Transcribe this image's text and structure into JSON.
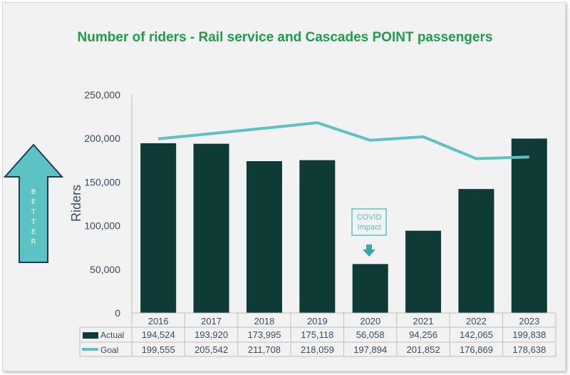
{
  "chart_data": {
    "type": "bar",
    "title": "Number of riders - Rail service and Cascades POINT passengers",
    "ylabel": "Riders",
    "ylim": [
      0,
      250000
    ],
    "yticks": [
      "0",
      "50,000",
      "100,000",
      "150,000",
      "200,000",
      "250,000"
    ],
    "categories": [
      "2016",
      "2017",
      "2018",
      "2019",
      "2020",
      "2021",
      "2022",
      "2023"
    ],
    "series": [
      {
        "name": "Actual",
        "kind": "bar",
        "color": "#0e3b36",
        "values": [
          194524,
          193920,
          173995,
          175118,
          56058,
          94256,
          142065,
          199838
        ],
        "labels": [
          "194,524",
          "193,920",
          "173,995",
          "175,118",
          "56,058",
          "94,256",
          "142,065",
          "199,838"
        ]
      },
      {
        "name": "Goal",
        "kind": "line",
        "color": "#5bc4c2",
        "values": [
          199555,
          205542,
          211708,
          218059,
          197894,
          201852,
          176869,
          178638
        ],
        "labels": [
          "199,555",
          "205,542",
          "211,708",
          "218,059",
          "197,894",
          "201,852",
          "176,869",
          "178,638"
        ]
      }
    ],
    "grid": false,
    "legend": "data-table",
    "annotation": {
      "line1": "COVID",
      "line2": "Impact",
      "category": "2020"
    },
    "better_label": "BETTER",
    "better_color": "#5bc4c2"
  }
}
